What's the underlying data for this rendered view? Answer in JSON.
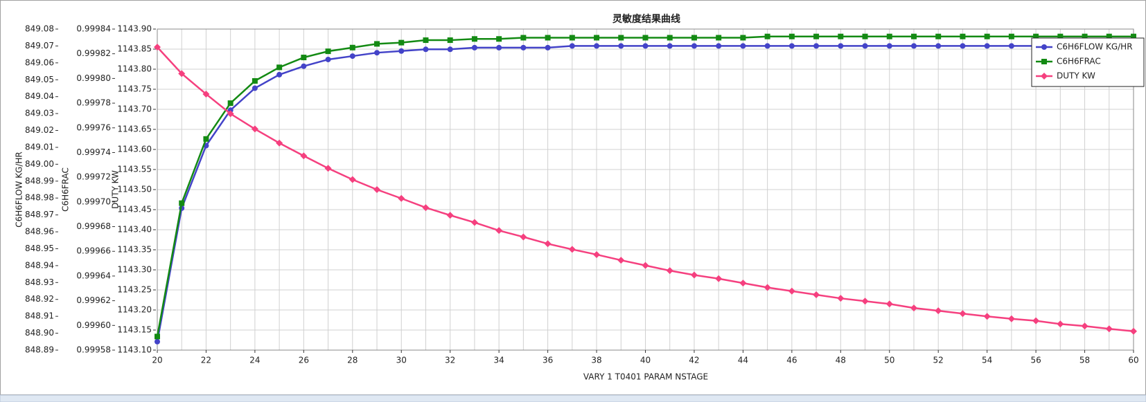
{
  "chart_data": {
    "type": "line",
    "title": "灵敏度结果曲线",
    "xlabel": "VARY   1 T0401 PARAM NSTAGE",
    "x": [
      20,
      21,
      22,
      23,
      24,
      25,
      26,
      27,
      28,
      29,
      30,
      31,
      32,
      33,
      34,
      35,
      36,
      37,
      38,
      39,
      40,
      41,
      42,
      43,
      44,
      45,
      46,
      47,
      48,
      49,
      50,
      51,
      52,
      53,
      54,
      55,
      56,
      57,
      58,
      59,
      60
    ],
    "xlim": [
      20,
      60
    ],
    "xticks": [
      20,
      22,
      24,
      26,
      28,
      30,
      32,
      34,
      36,
      38,
      40,
      42,
      44,
      46,
      48,
      50,
      52,
      54,
      56,
      58,
      60
    ],
    "ylabel": "C6H6FLOW KG/HR",
    "ylim": [
      848.89,
      849.08
    ],
    "yticks": [
      848.89,
      {
        "value": 848.9,
        "label": "848.90"
      },
      848.91,
      848.92,
      848.93,
      848.94,
      848.95,
      848.96,
      848.97,
      848.98,
      848.99,
      {
        "value": 849,
        "label": "849.00"
      },
      849.01,
      849.02,
      849.03,
      849.04,
      849.05,
      849.06,
      849.07,
      849.08
    ],
    "y2label": "C6H6FRAC",
    "y2lim": [
      0.99958,
      0.99984
    ],
    "y2ticks": [
      0.99958,
      {
        "value": 0.9996,
        "label": "0.99960"
      },
      0.99962,
      0.99964,
      0.99966,
      0.99968,
      {
        "value": 0.9997,
        "label": "0.99970"
      },
      0.99972,
      0.99974,
      0.99976,
      0.99978,
      {
        "value": 0.9998,
        "label": "0.99980"
      },
      0.99982,
      0.99984
    ],
    "y3label": "DUTY KW",
    "y3lim": [
      1143.1,
      1143.9
    ],
    "y3ticks": [
      {
        "value": 1143.1,
        "label": "1143.10"
      },
      1143.15,
      {
        "value": 1143.2,
        "label": "1143.20"
      },
      1143.25,
      {
        "value": 1143.3,
        "label": "1143.30"
      },
      1143.35,
      {
        "value": 1143.4,
        "label": "1143.40"
      },
      1143.45,
      {
        "value": 1143.5,
        "label": "1143.50"
      },
      1143.55,
      {
        "value": 1143.6,
        "label": "1143.60"
      },
      1143.65,
      {
        "value": 1143.7,
        "label": "1143.70"
      },
      1143.75,
      {
        "value": 1143.8,
        "label": "1143.80"
      },
      1143.85,
      {
        "value": 1143.9,
        "label": "1143.90"
      }
    ],
    "grid": true,
    "legend": "upper right",
    "series": [
      {
        "name": "C6H6FLOW KG/HR",
        "color": "#4343c8",
        "marker": "circle",
        "axis": "y",
        "values": [
          848.895,
          848.974,
          849.011,
          849.032,
          849.045,
          849.053,
          849.058,
          849.062,
          849.064,
          849.066,
          849.067,
          849.068,
          849.068,
          849.069,
          849.069,
          849.069,
          849.069,
          849.07,
          849.07,
          849.07,
          849.07,
          849.07,
          849.07,
          849.07,
          849.07,
          849.07,
          849.07,
          849.07,
          849.07,
          849.07,
          849.07,
          849.07,
          849.07,
          849.07,
          849.07,
          849.07,
          849.07,
          849.07,
          849.07,
          849.07,
          849.07
        ]
      },
      {
        "name": "C6H6FRAC",
        "color": "#138a13",
        "marker": "square",
        "axis": "y2",
        "values": [
          0.999591,
          0.999699,
          0.999751,
          0.99978,
          0.999798,
          0.999809,
          0.999817,
          0.999822,
          0.999825,
          0.999828,
          0.999829,
          0.999831,
          0.999831,
          0.999832,
          0.999832,
          0.999833,
          0.999833,
          0.999833,
          0.999833,
          0.999833,
          0.999833,
          0.999833,
          0.999833,
          0.999833,
          0.999833,
          0.999834,
          0.999834,
          0.999834,
          0.999834,
          0.999834,
          0.999834,
          0.999834,
          0.999834,
          0.999834,
          0.999834,
          0.999834,
          0.999834,
          0.999834,
          0.999834,
          0.999834,
          0.999834
        ]
      },
      {
        "name": "DUTY KW",
        "color": "#f5407f",
        "marker": "diamond",
        "axis": "y3",
        "values": [
          1143.855,
          1143.789,
          1143.738,
          1143.689,
          1143.651,
          1143.616,
          1143.584,
          1143.553,
          1143.525,
          1143.5,
          1143.478,
          1143.455,
          1143.436,
          1143.418,
          1143.398,
          1143.382,
          1143.365,
          1143.351,
          1143.338,
          1143.324,
          1143.311,
          1143.298,
          1143.287,
          1143.278,
          1143.267,
          1143.256,
          1143.247,
          1143.238,
          1143.229,
          1143.222,
          1143.215,
          1143.205,
          1143.198,
          1143.191,
          1143.184,
          1143.178,
          1143.173,
          1143.165,
          1143.16,
          1143.153,
          1143.147
        ]
      }
    ]
  }
}
